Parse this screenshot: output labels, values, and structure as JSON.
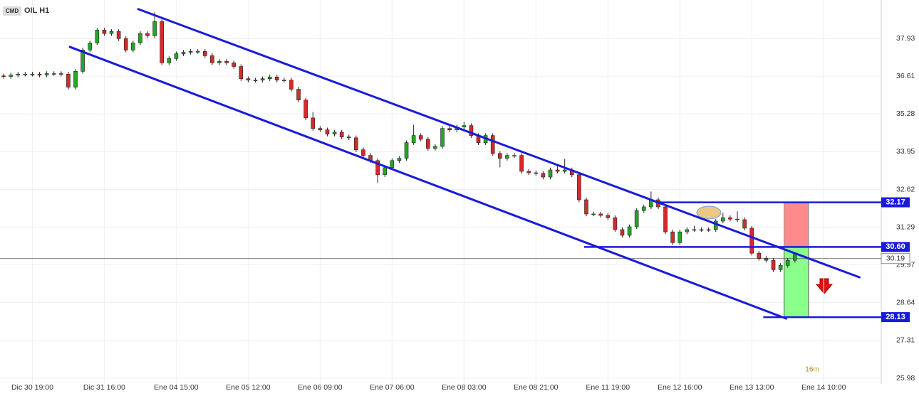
{
  "chart_data": {
    "type": "candlestick",
    "badge": "CMD",
    "title": "OIL H1",
    "timer": "16m",
    "up_color": "#22a822",
    "down_color": "#d42a2a",
    "line_color": "#1a1adb",
    "grid": true,
    "ylim": [
      25.78,
      39.29
    ],
    "yticks": [
      25.98,
      27.31,
      28.64,
      {
        "value": 29.97,
        "label": "29.97"
      },
      31.29,
      32.62,
      33.95,
      35.28,
      36.61,
      37.93
    ],
    "xlim": [
      -0.5,
      122
    ],
    "xticks": [
      {
        "value": 4,
        "label": "Dic 30 19:00"
      },
      {
        "value": 14,
        "label": "Dic 31 16:00"
      },
      {
        "value": 24,
        "label": "Ene 04 15:00"
      },
      {
        "value": 34,
        "label": "Ene 05 12:00"
      },
      {
        "value": 44,
        "label": "Ene 06 09:00"
      },
      {
        "value": 54,
        "label": "Ene 07 06:00"
      },
      {
        "value": 64,
        "label": "Ene 08 03:00"
      },
      {
        "value": 74,
        "label": "Ene 08 21:00"
      },
      {
        "value": 84,
        "label": "Ene 11 19:00"
      },
      {
        "value": 94,
        "label": "Ene 12 16:00"
      },
      {
        "value": 104,
        "label": "Ene 13 13:00"
      },
      {
        "value": 114,
        "label": "Ene 14 10:00"
      }
    ],
    "current_price": 30.19,
    "levels": [
      {
        "value": 32.17,
        "label": "32.17",
        "from": 90.6
      },
      {
        "value": 30.6,
        "label": "30.60",
        "from": 80.7
      },
      {
        "value": 28.13,
        "label": "28.13",
        "from": 105.6
      }
    ],
    "position_box": [
      108.5,
      111.9
    ],
    "trendlines": [
      {
        "x": [
          18.6,
          119.1
        ],
        "y": [
          38.98,
          29.52
        ]
      },
      {
        "x": [
          9.1,
          108.9
        ],
        "y": [
          37.65,
          28.07
        ]
      }
    ],
    "ohlc": [
      [
        36.62,
        36.7,
        36.52,
        36.6
      ],
      [
        36.6,
        36.73,
        36.52,
        36.65
      ],
      [
        36.65,
        36.76,
        36.57,
        36.68
      ],
      [
        36.68,
        36.76,
        36.6,
        36.68
      ],
      [
        36.68,
        36.76,
        36.6,
        36.68
      ],
      [
        36.68,
        36.76,
        36.57,
        36.65
      ],
      [
        36.65,
        36.78,
        36.57,
        36.7
      ],
      [
        36.7,
        36.78,
        36.62,
        36.7
      ],
      [
        36.7,
        36.78,
        36.6,
        36.68
      ],
      [
        36.68,
        36.76,
        36.14,
        36.22
      ],
      [
        36.22,
        36.86,
        36.14,
        36.78
      ],
      [
        36.78,
        37.61,
        36.7,
        37.53
      ],
      [
        37.53,
        37.86,
        37.45,
        37.78
      ],
      [
        37.78,
        38.31,
        37.7,
        38.23
      ],
      [
        38.23,
        38.31,
        38.03,
        38.11
      ],
      [
        38.11,
        38.26,
        38.03,
        38.18
      ],
      [
        38.18,
        38.26,
        37.85,
        37.93
      ],
      [
        37.93,
        38.01,
        37.45,
        37.53
      ],
      [
        37.53,
        37.86,
        37.45,
        37.78
      ],
      [
        37.78,
        38.19,
        37.7,
        38.11
      ],
      [
        38.11,
        38.19,
        37.95,
        38.03
      ],
      [
        38.03,
        38.85,
        37.95,
        38.53
      ],
      [
        38.53,
        38.61,
        37.0,
        37.08
      ],
      [
        37.08,
        37.31,
        37.0,
        37.23
      ],
      [
        37.23,
        37.48,
        37.15,
        37.4
      ],
      [
        37.4,
        37.53,
        37.32,
        37.45
      ],
      [
        37.45,
        37.56,
        37.37,
        37.48
      ],
      [
        37.48,
        37.56,
        37.4,
        37.48
      ],
      [
        37.48,
        37.56,
        37.25,
        37.33
      ],
      [
        37.33,
        37.41,
        37.0,
        37.08
      ],
      [
        37.08,
        37.21,
        37.0,
        37.13
      ],
      [
        37.13,
        37.21,
        37.0,
        37.08
      ],
      [
        37.08,
        37.16,
        36.87,
        36.95
      ],
      [
        36.95,
        37.03,
        36.44,
        36.52
      ],
      [
        36.52,
        36.6,
        36.39,
        36.47
      ],
      [
        36.47,
        36.55,
        36.39,
        36.47
      ],
      [
        36.47,
        36.6,
        36.39,
        36.52
      ],
      [
        36.52,
        36.66,
        36.44,
        36.58
      ],
      [
        36.58,
        36.66,
        36.39,
        36.47
      ],
      [
        36.47,
        36.55,
        36.39,
        36.47
      ],
      [
        36.47,
        36.55,
        36.07,
        36.15
      ],
      [
        36.15,
        36.23,
        35.69,
        35.77
      ],
      [
        35.77,
        35.85,
        35.06,
        35.14
      ],
      [
        35.14,
        35.35,
        34.69,
        34.77
      ],
      [
        34.77,
        34.85,
        34.64,
        34.72
      ],
      [
        34.72,
        34.8,
        34.49,
        34.57
      ],
      [
        34.57,
        34.72,
        34.49,
        34.64
      ],
      [
        34.64,
        34.72,
        34.39,
        34.47
      ],
      [
        34.47,
        34.55,
        34.36,
        34.44
      ],
      [
        34.44,
        34.52,
        33.94,
        34.02
      ],
      [
        34.02,
        34.1,
        33.74,
        33.82
      ],
      [
        33.82,
        33.9,
        33.56,
        33.64
      ],
      [
        33.64,
        33.72,
        32.85,
        33.14
      ],
      [
        33.14,
        33.47,
        33.06,
        33.39
      ],
      [
        33.39,
        33.72,
        33.31,
        33.64
      ],
      [
        33.64,
        33.8,
        33.56,
        33.72
      ],
      [
        33.72,
        34.35,
        33.64,
        34.27
      ],
      [
        34.27,
        34.9,
        34.19,
        34.52
      ],
      [
        34.52,
        34.6,
        34.31,
        34.39
      ],
      [
        34.39,
        34.47,
        33.99,
        34.07
      ],
      [
        34.07,
        34.22,
        33.99,
        34.14
      ],
      [
        34.14,
        34.85,
        34.06,
        34.77
      ],
      [
        34.77,
        34.85,
        34.64,
        34.72
      ],
      [
        34.72,
        34.9,
        34.64,
        34.82
      ],
      [
        34.82,
        35.0,
        34.74,
        34.87
      ],
      [
        34.87,
        34.95,
        34.44,
        34.52
      ],
      [
        34.52,
        34.6,
        34.19,
        34.27
      ],
      [
        34.27,
        34.6,
        34.19,
        34.52
      ],
      [
        34.52,
        34.6,
        33.81,
        33.89
      ],
      [
        33.89,
        33.97,
        33.4,
        33.72
      ],
      [
        33.72,
        33.9,
        33.64,
        33.82
      ],
      [
        33.82,
        33.9,
        33.74,
        33.82
      ],
      [
        33.82,
        33.9,
        33.18,
        33.26
      ],
      [
        33.26,
        33.34,
        33.13,
        33.21
      ],
      [
        33.21,
        33.29,
        33.11,
        33.19
      ],
      [
        33.19,
        33.27,
        32.98,
        33.06
      ],
      [
        33.06,
        33.39,
        32.98,
        33.31
      ],
      [
        33.31,
        33.45,
        33.18,
        33.26
      ],
      [
        33.26,
        33.7,
        33.18,
        33.31
      ],
      [
        33.31,
        33.39,
        33.06,
        33.14
      ],
      [
        33.14,
        33.22,
        32.18,
        32.26
      ],
      [
        32.26,
        32.34,
        31.68,
        31.76
      ],
      [
        31.76,
        31.84,
        31.68,
        31.76
      ],
      [
        31.76,
        31.84,
        31.63,
        31.71
      ],
      [
        31.71,
        31.79,
        31.55,
        31.63
      ],
      [
        31.63,
        31.71,
        31.13,
        31.21
      ],
      [
        31.21,
        31.29,
        30.93,
        31.01
      ],
      [
        31.01,
        31.39,
        30.93,
        31.31
      ],
      [
        31.31,
        31.96,
        31.23,
        31.88
      ],
      [
        31.88,
        32.09,
        31.8,
        32.01
      ],
      [
        32.01,
        32.55,
        31.93,
        32.26
      ],
      [
        32.26,
        32.34,
        31.93,
        32.01
      ],
      [
        32.01,
        32.09,
        31.05,
        31.13
      ],
      [
        31.13,
        31.21,
        30.67,
        30.75
      ],
      [
        30.75,
        31.21,
        30.67,
        31.13
      ],
      [
        31.13,
        31.29,
        31.05,
        31.21
      ],
      [
        31.21,
        31.35,
        31.13,
        31.21
      ],
      [
        31.21,
        31.29,
        31.13,
        31.21
      ],
      [
        31.21,
        31.29,
        31.13,
        31.21
      ],
      [
        31.21,
        31.59,
        31.13,
        31.51
      ],
      [
        31.51,
        31.8,
        31.43,
        31.63
      ],
      [
        31.63,
        31.71,
        31.5,
        31.58
      ],
      [
        31.58,
        31.85,
        31.48,
        31.56
      ],
      [
        31.56,
        31.64,
        31.18,
        31.26
      ],
      [
        31.26,
        31.34,
        30.3,
        30.38
      ],
      [
        30.38,
        30.46,
        30.12,
        30.2
      ],
      [
        30.2,
        30.28,
        30.05,
        30.13
      ],
      [
        30.13,
        30.21,
        29.72,
        29.8
      ],
      [
        29.8,
        30.03,
        29.72,
        29.95
      ],
      [
        29.95,
        30.21,
        29.87,
        30.13
      ],
      [
        30.13,
        30.41,
        30.05,
        30.33
      ]
    ]
  }
}
